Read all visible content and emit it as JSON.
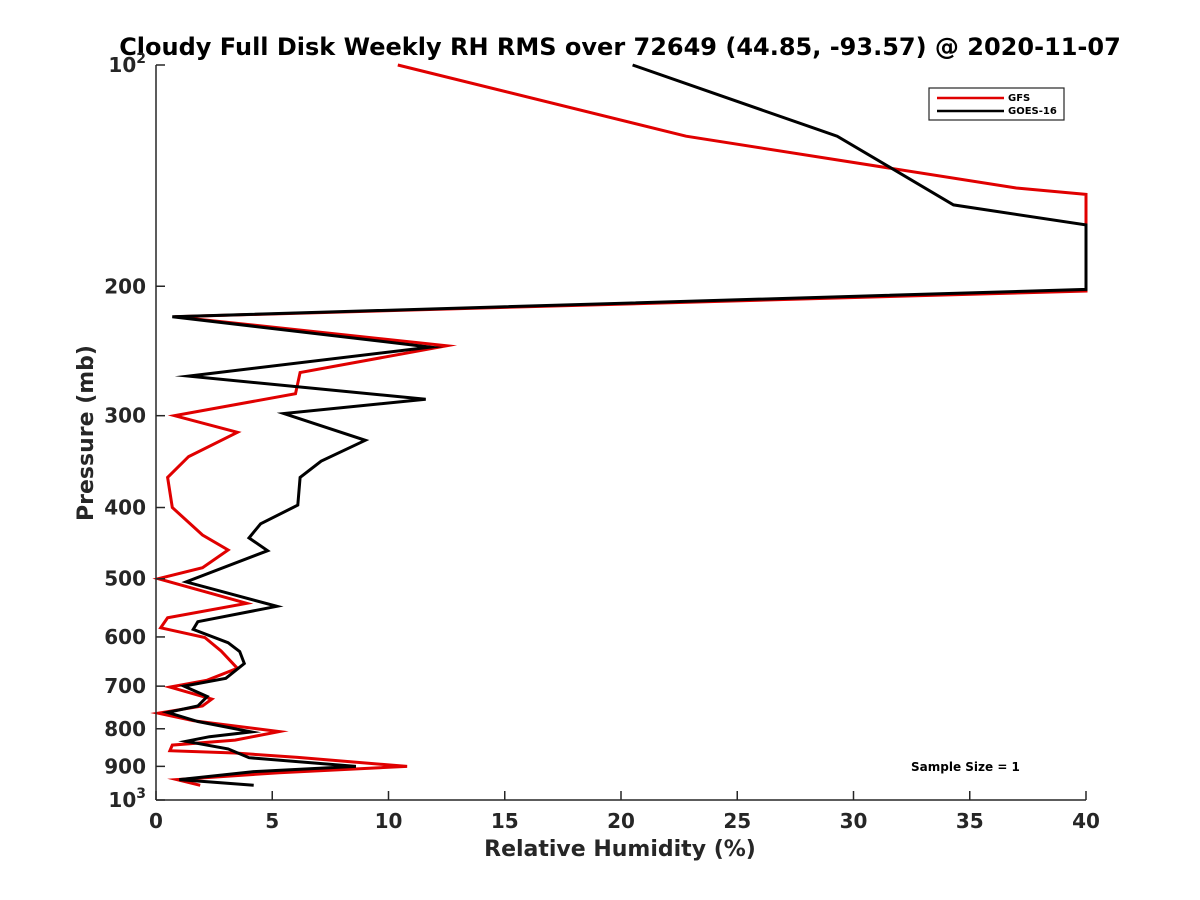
{
  "chart_data": {
    "type": "line",
    "title": "Cloudy Full Disk Weekly RH RMS over 72649 (44.85, -93.57) @ 2020-11-07",
    "xlabel": "Relative Humidity (%)",
    "ylabel": "Pressure (mb)",
    "xlim": [
      0,
      40
    ],
    "ylim": [
      100,
      1000
    ],
    "y_scale": "log",
    "y_reversed": true,
    "x_ticks": [
      "0",
      "5",
      "10",
      "15",
      "20",
      "25",
      "30",
      "35",
      "40"
    ],
    "y_ticks": [
      {
        "value": 100,
        "label": "10",
        "exp": "2"
      },
      {
        "value": 200,
        "label": "200"
      },
      {
        "value": 300,
        "label": "300"
      },
      {
        "value": 400,
        "label": "400"
      },
      {
        "value": 500,
        "label": "500"
      },
      {
        "value": 600,
        "label": "600"
      },
      {
        "value": 700,
        "label": "700"
      },
      {
        "value": 800,
        "label": "800"
      },
      {
        "value": 900,
        "label": "900"
      },
      {
        "value": 1000,
        "label": "10",
        "exp": "3"
      }
    ],
    "legend_position": "top-right",
    "annotation": "Sample Size = 1",
    "series": [
      {
        "name": "GFS",
        "color": "#e00000",
        "points": [
          [
            10.4,
            100
          ],
          [
            22.8,
            125
          ],
          [
            37.0,
            147
          ],
          [
            40.0,
            150
          ],
          [
            40.0,
            203
          ],
          [
            0.8,
            220
          ],
          [
            12.5,
            241
          ],
          [
            6.2,
            262
          ],
          [
            6.0,
            280
          ],
          [
            0.8,
            300
          ],
          [
            3.5,
            316
          ],
          [
            1.4,
            341
          ],
          [
            0.5,
            364
          ],
          [
            0.7,
            400
          ],
          [
            2.0,
            436
          ],
          [
            3.1,
            457
          ],
          [
            2.0,
            483
          ],
          [
            0.1,
            500
          ],
          [
            3.9,
            540
          ],
          [
            0.5,
            565
          ],
          [
            0.2,
            583
          ],
          [
            2.1,
            601
          ],
          [
            2.8,
            627
          ],
          [
            3.5,
            662
          ],
          [
            2.2,
            687
          ],
          [
            0.6,
            702
          ],
          [
            2.4,
            729
          ],
          [
            2.0,
            745
          ],
          [
            0.1,
            762
          ],
          [
            1.6,
            780
          ],
          [
            5.3,
            807
          ],
          [
            3.4,
            829
          ],
          [
            0.7,
            842
          ],
          [
            0.6,
            857
          ],
          [
            3.4,
            863
          ],
          [
            6.1,
            875
          ],
          [
            10.8,
            900
          ],
          [
            5.3,
            918
          ],
          [
            0.9,
            938
          ],
          [
            1.9,
            955
          ]
        ]
      },
      {
        "name": "GOES-16",
        "color": "#000000",
        "points": [
          [
            20.5,
            100
          ],
          [
            29.3,
            125
          ],
          [
            34.3,
            155
          ],
          [
            40.0,
            165
          ],
          [
            40.0,
            202
          ],
          [
            0.7,
            220
          ],
          [
            11.8,
            242
          ],
          [
            1.4,
            265
          ],
          [
            11.6,
            285
          ],
          [
            5.5,
            298
          ],
          [
            9.0,
            324
          ],
          [
            7.1,
            346
          ],
          [
            6.2,
            364
          ],
          [
            6.1,
            397
          ],
          [
            4.5,
            421
          ],
          [
            4.0,
            440
          ],
          [
            4.8,
            458
          ],
          [
            1.3,
            505
          ],
          [
            5.2,
            545
          ],
          [
            1.8,
            572
          ],
          [
            1.6,
            586
          ],
          [
            3.1,
            611
          ],
          [
            3.6,
            628
          ],
          [
            3.8,
            652
          ],
          [
            3.0,
            683
          ],
          [
            1.2,
            700
          ],
          [
            2.2,
            723
          ],
          [
            1.8,
            745
          ],
          [
            0.5,
            760
          ],
          [
            1.8,
            782
          ],
          [
            4.1,
            808
          ],
          [
            2.3,
            820
          ],
          [
            1.3,
            832
          ],
          [
            3.1,
            852
          ],
          [
            4.0,
            876
          ],
          [
            8.6,
            900
          ],
          [
            4.2,
            915
          ],
          [
            1.0,
            938
          ],
          [
            4.2,
            955
          ]
        ]
      }
    ]
  }
}
